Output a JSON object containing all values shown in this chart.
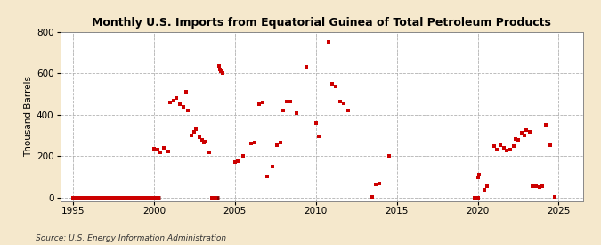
{
  "title": "Monthly U.S. Imports from Equatorial Guinea of Total Petroleum Products",
  "ylabel": "Thousand Barrels",
  "source": "Source: U.S. Energy Information Administration",
  "bg_color": "#f5e8cc",
  "plot_bg_color": "#ffffff",
  "marker_color": "#cc0000",
  "zero_line_color": "#8b0000",
  "xlim": [
    1994.2,
    2026.5
  ],
  "ylim": [
    -15,
    800
  ],
  "yticks": [
    0,
    200,
    400,
    600,
    800
  ],
  "xticks": [
    1995,
    2000,
    2005,
    2010,
    2015,
    2020,
    2025
  ],
  "data": [
    [
      1995.0,
      0
    ],
    [
      1995.1,
      0
    ],
    [
      1995.2,
      0
    ],
    [
      1995.3,
      0
    ],
    [
      1995.4,
      0
    ],
    [
      1995.5,
      0
    ],
    [
      1995.6,
      0
    ],
    [
      1995.7,
      0
    ],
    [
      1995.8,
      0
    ],
    [
      1995.9,
      0
    ],
    [
      1996.0,
      0
    ],
    [
      1996.1,
      0
    ],
    [
      1996.2,
      0
    ],
    [
      1996.3,
      0
    ],
    [
      1996.4,
      0
    ],
    [
      1996.5,
      0
    ],
    [
      1996.6,
      0
    ],
    [
      1996.7,
      0
    ],
    [
      1996.8,
      0
    ],
    [
      1996.9,
      0
    ],
    [
      1997.0,
      0
    ],
    [
      1997.1,
      0
    ],
    [
      1997.2,
      0
    ],
    [
      1997.3,
      0
    ],
    [
      1997.4,
      0
    ],
    [
      1997.5,
      0
    ],
    [
      1997.6,
      0
    ],
    [
      1997.7,
      0
    ],
    [
      1997.8,
      0
    ],
    [
      1997.9,
      0
    ],
    [
      1998.0,
      0
    ],
    [
      1998.1,
      0
    ],
    [
      1998.2,
      0
    ],
    [
      1998.3,
      0
    ],
    [
      1998.4,
      0
    ],
    [
      1998.5,
      0
    ],
    [
      1998.6,
      0
    ],
    [
      1998.7,
      0
    ],
    [
      1998.8,
      0
    ],
    [
      1998.9,
      0
    ],
    [
      1999.0,
      0
    ],
    [
      1999.1,
      0
    ],
    [
      1999.2,
      0
    ],
    [
      1999.3,
      0
    ],
    [
      1999.4,
      0
    ],
    [
      1999.5,
      0
    ],
    [
      1999.6,
      0
    ],
    [
      1999.7,
      0
    ],
    [
      1999.8,
      0
    ],
    [
      1999.9,
      0
    ],
    [
      2000.0,
      0
    ],
    [
      2000.1,
      0
    ],
    [
      2000.2,
      0
    ],
    [
      2000.3,
      0
    ],
    [
      2003.6,
      0
    ],
    [
      2003.7,
      0
    ],
    [
      2003.8,
      0
    ],
    [
      2000.0,
      237
    ],
    [
      2000.2,
      233
    ],
    [
      2000.4,
      220
    ],
    [
      2000.6,
      240
    ],
    [
      2000.9,
      222
    ],
    [
      2001.0,
      460
    ],
    [
      2001.2,
      470
    ],
    [
      2001.4,
      480
    ],
    [
      2001.6,
      450
    ],
    [
      2001.8,
      440
    ],
    [
      2002.0,
      510
    ],
    [
      2002.1,
      420
    ],
    [
      2002.3,
      300
    ],
    [
      2002.5,
      320
    ],
    [
      2002.6,
      330
    ],
    [
      2002.8,
      290
    ],
    [
      2003.0,
      280
    ],
    [
      2003.1,
      265
    ],
    [
      2003.2,
      270
    ],
    [
      2003.4,
      220
    ],
    [
      2004.0,
      635
    ],
    [
      2004.05,
      620
    ],
    [
      2004.15,
      610
    ],
    [
      2004.25,
      600
    ],
    [
      2005.0,
      170
    ],
    [
      2005.2,
      175
    ],
    [
      2005.5,
      200
    ],
    [
      2006.0,
      260
    ],
    [
      2006.2,
      265
    ],
    [
      2006.5,
      450
    ],
    [
      2006.7,
      460
    ],
    [
      2007.0,
      105
    ],
    [
      2007.3,
      150
    ],
    [
      2007.6,
      255
    ],
    [
      2007.8,
      265
    ],
    [
      2008.0,
      420
    ],
    [
      2008.2,
      465
    ],
    [
      2008.4,
      465
    ],
    [
      2008.8,
      410
    ],
    [
      2009.4,
      630
    ],
    [
      2010.0,
      360
    ],
    [
      2010.2,
      295
    ],
    [
      2010.8,
      750
    ],
    [
      2011.0,
      550
    ],
    [
      2011.2,
      535
    ],
    [
      2011.5,
      465
    ],
    [
      2011.7,
      455
    ],
    [
      2012.0,
      420
    ],
    [
      2013.5,
      5
    ],
    [
      2013.7,
      65
    ],
    [
      2013.9,
      70
    ],
    [
      2014.5,
      200
    ],
    [
      2019.8,
      0
    ],
    [
      2020.0,
      0
    ],
    [
      2020.05,
      100
    ],
    [
      2020.1,
      110
    ],
    [
      2020.4,
      40
    ],
    [
      2020.6,
      55
    ],
    [
      2021.0,
      250
    ],
    [
      2021.2,
      232
    ],
    [
      2021.4,
      255
    ],
    [
      2021.6,
      240
    ],
    [
      2021.8,
      226
    ],
    [
      2022.0,
      232
    ],
    [
      2022.2,
      250
    ],
    [
      2022.35,
      285
    ],
    [
      2022.5,
      278
    ],
    [
      2022.7,
      312
    ],
    [
      2022.9,
      302
    ],
    [
      2023.0,
      328
    ],
    [
      2023.2,
      318
    ],
    [
      2023.4,
      57
    ],
    [
      2023.6,
      57
    ],
    [
      2023.8,
      52
    ],
    [
      2024.0,
      57
    ],
    [
      2024.2,
      352
    ],
    [
      2024.5,
      252
    ],
    [
      2024.75,
      5
    ]
  ],
  "zero_ranges": [
    [
      1995.0,
      2000.4
    ],
    [
      2003.5,
      2004.0
    ]
  ]
}
